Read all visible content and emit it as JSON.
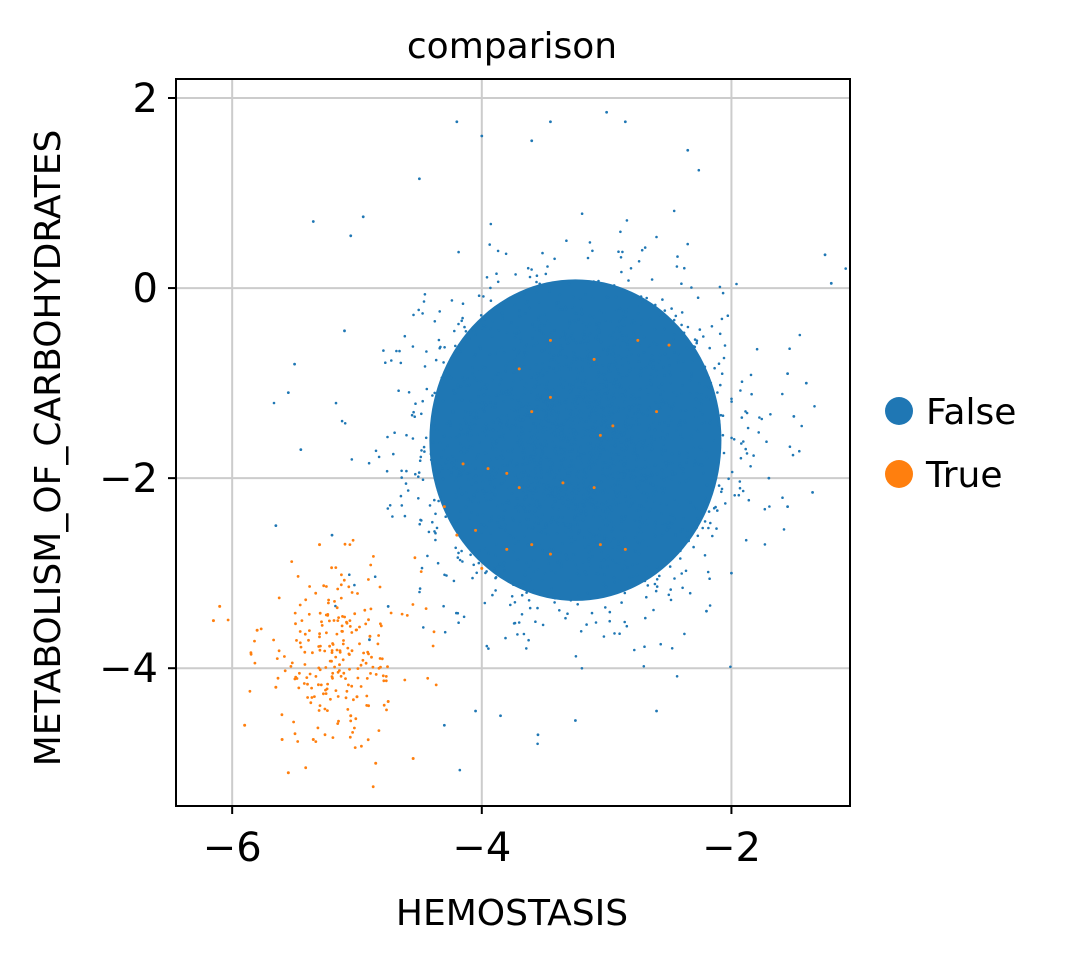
{
  "chart_data": {
    "type": "scatter",
    "title": "comparison",
    "xlabel": "HEMOSTASIS",
    "ylabel": "METABOLISM_OF_CARBOHYDRATES",
    "xlim": [
      -6.45,
      -1.05
    ],
    "ylim": [
      -5.45,
      2.2
    ],
    "xticks": [
      -6,
      -4,
      -2
    ],
    "yticks": [
      -4,
      -2,
      0,
      2
    ],
    "xtick_labels": [
      "−6",
      "−4",
      "−2"
    ],
    "ytick_labels": [
      "−4",
      "−2",
      "0",
      "2"
    ],
    "grid": true,
    "legend": {
      "placement": "right",
      "entries": [
        "False",
        "True"
      ]
    },
    "colors": {
      "False": "#1f77b4",
      "True": "#ff7f0e"
    },
    "series": [
      {
        "name": "False",
        "cluster": {
          "center": [
            -3.25,
            -1.6
          ],
          "spread": [
            0.52,
            0.72
          ]
        },
        "points": [
          [
            -4.2,
            1.75
          ],
          [
            -4.0,
            1.6
          ],
          [
            -3.6,
            1.55
          ],
          [
            -3.45,
            1.75
          ],
          [
            -3.0,
            1.85
          ],
          [
            -2.85,
            1.75
          ],
          [
            -2.35,
            1.45
          ],
          [
            -4.5,
            1.15
          ],
          [
            -1.25,
            0.35
          ],
          [
            -1.2,
            0.05
          ],
          [
            -5.35,
            0.7
          ],
          [
            -5.05,
            0.55
          ],
          [
            -4.95,
            0.75
          ],
          [
            -5.1,
            -0.45
          ],
          [
            -5.5,
            -0.8
          ],
          [
            -5.55,
            -1.1
          ],
          [
            -5.45,
            -1.7
          ],
          [
            -5.65,
            -2.5
          ],
          [
            -5.2,
            -2.6
          ],
          [
            -1.4,
            -1.0
          ],
          [
            -1.55,
            -0.9
          ],
          [
            -1.5,
            -1.35
          ],
          [
            -1.35,
            -2.15
          ],
          [
            -1.55,
            -2.3
          ],
          [
            -1.7,
            -2.0
          ],
          [
            -3.55,
            -4.7
          ],
          [
            -3.25,
            -4.55
          ],
          [
            -2.6,
            -4.45
          ],
          [
            -3.85,
            -4.5
          ],
          [
            -4.3,
            -4.6
          ],
          [
            -4.05,
            -4.45
          ],
          [
            -4.9,
            -3.7
          ],
          [
            -4.75,
            -3.35
          ],
          [
            -2.0,
            -3.0
          ],
          [
            -2.2,
            -3.4
          ]
        ]
      },
      {
        "name": "True",
        "points": [
          [
            -3.45,
            -0.55
          ],
          [
            -3.1,
            -0.75
          ],
          [
            -2.75,
            -0.55
          ],
          [
            -2.5,
            -0.6
          ],
          [
            -3.7,
            -0.85
          ],
          [
            -3.6,
            -1.3
          ],
          [
            -3.05,
            -1.55
          ],
          [
            -3.45,
            -1.15
          ],
          [
            -2.95,
            -1.45
          ],
          [
            -4.15,
            -1.85
          ],
          [
            -3.95,
            -1.9
          ],
          [
            -3.8,
            -1.95
          ],
          [
            -3.7,
            -2.1
          ],
          [
            -3.1,
            -2.1
          ],
          [
            -4.3,
            -2.3
          ],
          [
            -4.05,
            -2.55
          ],
          [
            -3.8,
            -2.75
          ],
          [
            -3.6,
            -2.7
          ],
          [
            -3.05,
            -2.7
          ],
          [
            -2.85,
            -2.75
          ],
          [
            -4.2,
            -2.6
          ],
          [
            -3.45,
            -2.8
          ],
          [
            -3.35,
            -2.05
          ],
          [
            -2.6,
            -1.3
          ],
          [
            -4.0,
            -2.95
          ],
          [
            -5.05,
            -4.5
          ],
          [
            -5.0,
            -4.3
          ],
          [
            -4.75,
            -4.35
          ],
          [
            -4.55,
            -4.95
          ],
          [
            -4.85,
            -5.0
          ],
          [
            -5.3,
            -2.7
          ],
          [
            -5.35,
            -4.75
          ],
          [
            -5.55,
            -5.1
          ],
          [
            -5.6,
            -4.75
          ],
          [
            -5.9,
            -4.6
          ],
          [
            -6.1,
            -3.35
          ],
          [
            -6.15,
            -3.5
          ],
          [
            -5.8,
            -3.6
          ],
          [
            -5.65,
            -4.2
          ]
        ],
        "cluster": {
          "center": [
            -5.15,
            -3.85
          ],
          "spread": [
            0.32,
            0.45
          ]
        }
      }
    ]
  }
}
